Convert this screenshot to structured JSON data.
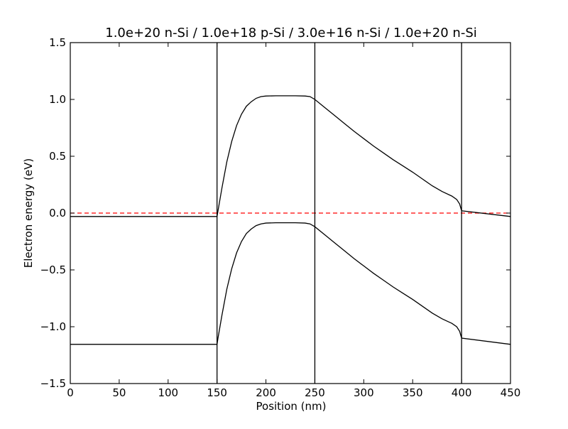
{
  "chart_data": {
    "type": "line",
    "title": "1.0e+20 n-Si / 1.0e+18 p-Si / 3.0e+16 n-Si / 1.0e+20 n-Si",
    "xlabel": "Position (nm)",
    "ylabel": "Electron energy (eV)",
    "xlim": [
      0,
      450
    ],
    "ylim": [
      -1.5,
      1.5
    ],
    "x_ticks": [
      0,
      50,
      100,
      150,
      200,
      250,
      300,
      350,
      400,
      450
    ],
    "y_ticks": [
      -1.5,
      -1.0,
      -0.5,
      0.0,
      0.5,
      1.0,
      1.5
    ],
    "x_tick_labels": [
      "0",
      "50",
      "100",
      "150",
      "200",
      "250",
      "300",
      "350",
      "400",
      "450"
    ],
    "y_tick_labels": [
      "−1.5",
      "−1.0",
      "−0.5",
      "0.0",
      "0.5",
      "1.0",
      "1.5"
    ],
    "grid": false,
    "legend": "none",
    "layer_boundaries": [
      150,
      250,
      400
    ],
    "fermi_level": {
      "y": 0.0,
      "color": "#ff0000",
      "style": "dashed"
    },
    "series": [
      {
        "color": "#000000",
        "x": [
          0,
          150,
          151,
          155,
          160,
          165,
          170,
          175,
          180,
          185,
          190,
          195,
          200,
          210,
          220,
          230,
          240,
          245,
          250,
          260,
          270,
          280,
          290,
          300,
          310,
          320,
          330,
          340,
          350,
          360,
          370,
          380,
          390,
          395,
          398,
          400,
          450
        ],
        "y": [
          -0.03,
          -0.03,
          0.02,
          0.22,
          0.45,
          0.63,
          0.77,
          0.87,
          0.94,
          0.98,
          1.01,
          1.025,
          1.03,
          1.032,
          1.032,
          1.032,
          1.03,
          1.025,
          1.0,
          0.93,
          0.86,
          0.79,
          0.72,
          0.655,
          0.59,
          0.53,
          0.47,
          0.415,
          0.36,
          0.3,
          0.24,
          0.19,
          0.15,
          0.12,
          0.08,
          0.02,
          -0.03
        ]
      },
      {
        "color": "#000000",
        "x": [
          0,
          150,
          151,
          155,
          160,
          165,
          170,
          175,
          180,
          185,
          190,
          195,
          200,
          210,
          220,
          230,
          240,
          245,
          250,
          260,
          270,
          280,
          290,
          300,
          310,
          320,
          330,
          340,
          350,
          360,
          370,
          380,
          390,
          395,
          398,
          400,
          450
        ],
        "y": [
          -1.155,
          -1.155,
          -1.1,
          -0.9,
          -0.67,
          -0.49,
          -0.35,
          -0.25,
          -0.18,
          -0.14,
          -0.11,
          -0.095,
          -0.088,
          -0.085,
          -0.085,
          -0.085,
          -0.088,
          -0.095,
          -0.12,
          -0.19,
          -0.26,
          -0.33,
          -0.4,
          -0.465,
          -0.53,
          -0.59,
          -0.65,
          -0.705,
          -0.76,
          -0.82,
          -0.88,
          -0.93,
          -0.97,
          -1.0,
          -1.04,
          -1.1,
          -1.155
        ]
      }
    ]
  }
}
